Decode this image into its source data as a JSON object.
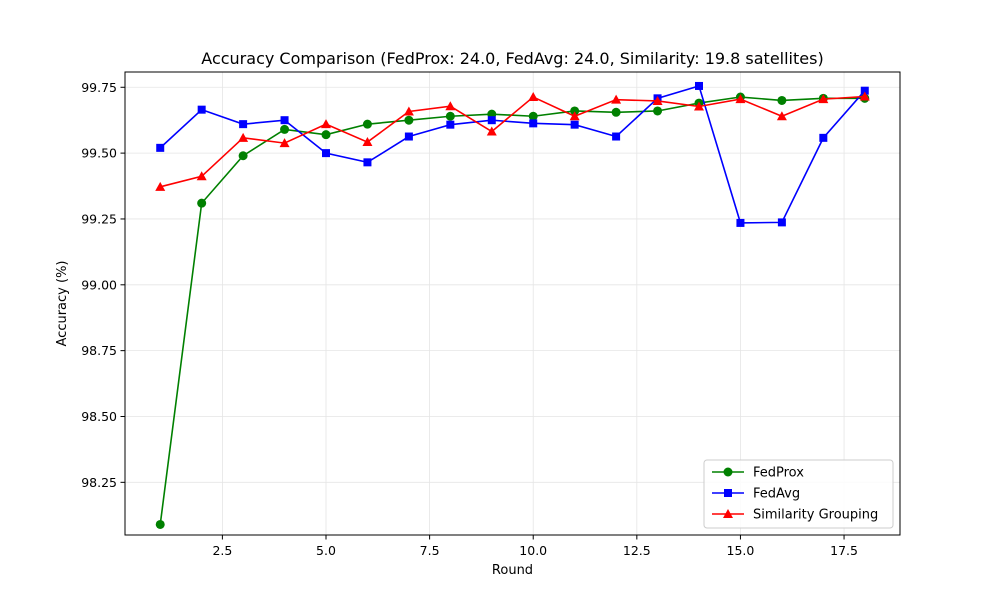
{
  "chart_data": {
    "type": "line",
    "title": "Accuracy Comparison (FedProx: 24.0, FedAvg: 24.0, Similarity: 19.8 satellites)",
    "xlabel": "Round",
    "ylabel": "Accuracy (%)",
    "xlim": [
      0.15,
      18.85
    ],
    "ylim": [
      98.05,
      99.808
    ],
    "xticks": [
      2.5,
      5.0,
      7.5,
      10.0,
      12.5,
      15.0,
      17.5
    ],
    "xtick_labels": [
      "2.5",
      "5.0",
      "7.5",
      "10.0",
      "12.5",
      "15.0",
      "17.5"
    ],
    "yticks": [
      98.25,
      98.5,
      98.75,
      99.0,
      99.25,
      99.5,
      99.75
    ],
    "ytick_labels": [
      "98.25",
      "98.50",
      "98.75",
      "99.00",
      "99.25",
      "99.50",
      "99.75"
    ],
    "grid": true,
    "legend_position": "lower-right",
    "x": [
      1,
      2,
      3,
      4,
      5,
      6,
      7,
      8,
      9,
      10,
      11,
      12,
      13,
      14,
      15,
      16,
      17,
      18
    ],
    "series": [
      {
        "name": "FedProx",
        "color": "#008000",
        "marker": "circle",
        "values": [
          98.09,
          99.31,
          99.49,
          99.59,
          99.57,
          99.61,
          99.625,
          99.64,
          99.648,
          99.64,
          99.66,
          99.655,
          99.66,
          99.69,
          99.713,
          99.7,
          99.708,
          99.708
        ]
      },
      {
        "name": "FedAvg",
        "color": "#0000ff",
        "marker": "square",
        "values": [
          99.52,
          99.665,
          99.61,
          99.625,
          99.5,
          99.465,
          99.563,
          99.608,
          99.625,
          99.613,
          99.608,
          99.563,
          99.708,
          99.755,
          99.235,
          99.237,
          99.558,
          99.737
        ]
      },
      {
        "name": "Similarity Grouping",
        "color": "#ff0000",
        "marker": "triangle",
        "values": [
          99.372,
          99.412,
          99.558,
          99.538,
          99.61,
          99.542,
          99.658,
          99.678,
          99.582,
          99.713,
          99.64,
          99.703,
          99.698,
          99.677,
          99.705,
          99.64,
          99.705,
          99.715
        ]
      }
    ]
  }
}
